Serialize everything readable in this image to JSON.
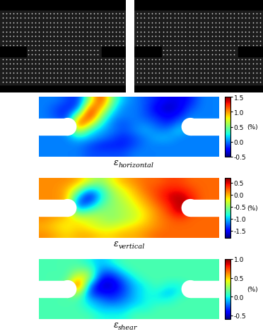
{
  "chart_data": [
    {
      "type": "heatmap",
      "title": {
        "symbol": "ε",
        "subscript": "horizontal"
      },
      "cells": [
        [
          0.0,
          0.0,
          -0.1,
          -0.2,
          0.6,
          1.3,
          0.5,
          0.1,
          0.0,
          -0.1,
          -0.2,
          -0.3,
          -0.3,
          -0.2,
          0.0,
          0.0
        ],
        [
          0.0,
          -0.1,
          -0.2,
          -0.1,
          1.2,
          1.0,
          0.3,
          0.0,
          0.0,
          -0.1,
          -0.3,
          -0.4,
          -0.3,
          -0.1,
          0.0,
          0.0
        ],
        [
          0.0,
          -0.1,
          -0.2,
          0.6,
          1.4,
          0.6,
          0.1,
          0.0,
          0.0,
          -0.1,
          -0.2,
          -0.3,
          -0.2,
          0.0,
          0.0,
          0.0
        ],
        [
          0.0,
          0.0,
          -0.1,
          1.3,
          0.9,
          0.3,
          0.0,
          -0.1,
          0.0,
          0.0,
          -0.1,
          -0.2,
          0.0,
          0.1,
          0.0,
          0.0
        ],
        [
          0.0,
          0.0,
          0.1,
          0.8,
          0.3,
          0.1,
          0.0,
          -0.1,
          0.0,
          0.1,
          0.0,
          0.0,
          0.2,
          0.0,
          0.0,
          0.0
        ],
        [
          0.0,
          0.0,
          0.0,
          0.2,
          0.1,
          0.0,
          -0.1,
          -0.2,
          -0.1,
          0.0,
          0.1,
          0.1,
          0.0,
          0.0,
          0.0,
          0.0
        ],
        [
          0.0,
          0.0,
          0.0,
          0.0,
          -0.1,
          -0.2,
          -0.2,
          -0.2,
          -0.1,
          0.0,
          0.0,
          0.0,
          0.0,
          0.0,
          0.0,
          0.0
        ],
        [
          0.0,
          0.0,
          0.0,
          0.0,
          -0.1,
          -0.1,
          -0.1,
          -0.1,
          0.0,
          0.0,
          0.0,
          0.0,
          0.0,
          0.0,
          0.0,
          0.0
        ]
      ],
      "colorbar_range": [
        -0.5,
        1.5
      ],
      "colorbar_ticks": [
        1.5,
        1.0,
        0.5,
        0.0,
        -0.5
      ],
      "colorbar_label": "(%)"
    },
    {
      "type": "heatmap",
      "title": {
        "symbol": "ε",
        "subscript": "vertical"
      },
      "cells": [
        [
          0.1,
          0.1,
          0.1,
          0.0,
          -0.3,
          -0.5,
          -0.2,
          0.0,
          0.1,
          0.2,
          0.2,
          0.3,
          0.3,
          0.2,
          0.2,
          0.2
        ],
        [
          0.1,
          0.1,
          0.0,
          -0.4,
          -1.0,
          -0.8,
          -0.4,
          -0.2,
          0.0,
          0.2,
          0.3,
          0.4,
          0.4,
          0.3,
          0.2,
          0.2
        ],
        [
          0.1,
          0.1,
          0.0,
          -1.0,
          -1.6,
          -0.9,
          -0.5,
          -0.3,
          -0.1,
          0.1,
          0.3,
          0.5,
          0.6,
          0.4,
          0.2,
          0.2
        ],
        [
          0.1,
          0.1,
          0.0,
          -1.4,
          -1.2,
          -0.7,
          -0.5,
          -0.4,
          -0.2,
          0.0,
          0.2,
          0.4,
          0.6,
          0.5,
          0.2,
          0.2
        ],
        [
          0.1,
          0.1,
          0.0,
          -0.8,
          -0.6,
          -0.5,
          -0.5,
          -0.4,
          -0.3,
          -0.1,
          0.1,
          0.3,
          0.6,
          0.3,
          0.2,
          0.2
        ],
        [
          0.1,
          0.0,
          -0.1,
          -0.2,
          -0.3,
          -0.4,
          -0.5,
          -0.4,
          -0.3,
          -0.1,
          0.1,
          0.2,
          0.3,
          0.2,
          0.2,
          0.2
        ],
        [
          0.0,
          -0.1,
          -0.2,
          -0.1,
          -0.2,
          -0.3,
          -0.3,
          -0.2,
          -0.1,
          0.0,
          0.1,
          0.2,
          0.2,
          0.2,
          0.2,
          0.2
        ],
        [
          0.1,
          0.0,
          -0.1,
          0.0,
          0.0,
          -0.1,
          -0.1,
          0.0,
          0.0,
          0.1,
          0.2,
          0.2,
          0.2,
          0.2,
          0.2,
          0.2
        ]
      ],
      "colorbar_range": [
        -1.8,
        0.7
      ],
      "colorbar_ticks": [
        0.5,
        0.0,
        -0.5,
        -1.0,
        -1.5
      ],
      "colorbar_label": "(%)"
    },
    {
      "type": "heatmap",
      "title": {
        "symbol": "ε",
        "subscript": "shear"
      },
      "cells": [
        [
          0.1,
          0.1,
          0.1,
          0.1,
          0.0,
          -0.1,
          0.0,
          0.1,
          0.1,
          0.1,
          0.1,
          0.1,
          0.1,
          0.1,
          0.1,
          0.1
        ],
        [
          0.1,
          0.1,
          0.1,
          0.2,
          0.2,
          -0.2,
          -0.2,
          0.0,
          0.1,
          0.1,
          0.1,
          0.1,
          0.1,
          0.1,
          0.1,
          0.1
        ],
        [
          0.1,
          0.1,
          0.1,
          0.5,
          0.3,
          -0.4,
          -0.4,
          -0.2,
          0.0,
          0.1,
          0.1,
          0.1,
          0.1,
          0.1,
          0.1,
          0.1
        ],
        [
          0.1,
          0.1,
          0.2,
          0.9,
          -0.2,
          -0.5,
          -0.5,
          -0.3,
          -0.1,
          0.0,
          0.1,
          0.0,
          0.0,
          0.1,
          0.1,
          0.1
        ],
        [
          0.1,
          0.1,
          0.1,
          0.4,
          -0.3,
          -0.4,
          -0.4,
          -0.3,
          -0.1,
          0.0,
          0.0,
          -0.1,
          0.0,
          0.1,
          0.1,
          0.1
        ],
        [
          0.1,
          0.1,
          0.1,
          0.1,
          -0.1,
          -0.2,
          -0.3,
          -0.2,
          -0.1,
          0.0,
          0.0,
          0.0,
          0.1,
          0.1,
          0.1,
          0.1
        ],
        [
          0.1,
          0.1,
          0.1,
          0.1,
          0.0,
          -0.1,
          -0.1,
          -0.1,
          0.0,
          0.0,
          0.1,
          0.1,
          0.1,
          0.1,
          0.1,
          0.1
        ],
        [
          0.1,
          0.1,
          0.1,
          0.1,
          0.1,
          0.0,
          0.0,
          0.0,
          0.1,
          0.1,
          0.1,
          0.1,
          0.1,
          0.1,
          0.1,
          0.1
        ]
      ],
      "colorbar_range": [
        -0.6,
        1.0
      ],
      "colorbar_ticks": [
        1.0,
        0.5,
        0.0,
        -0.5
      ],
      "colorbar_label": "(%)"
    }
  ]
}
